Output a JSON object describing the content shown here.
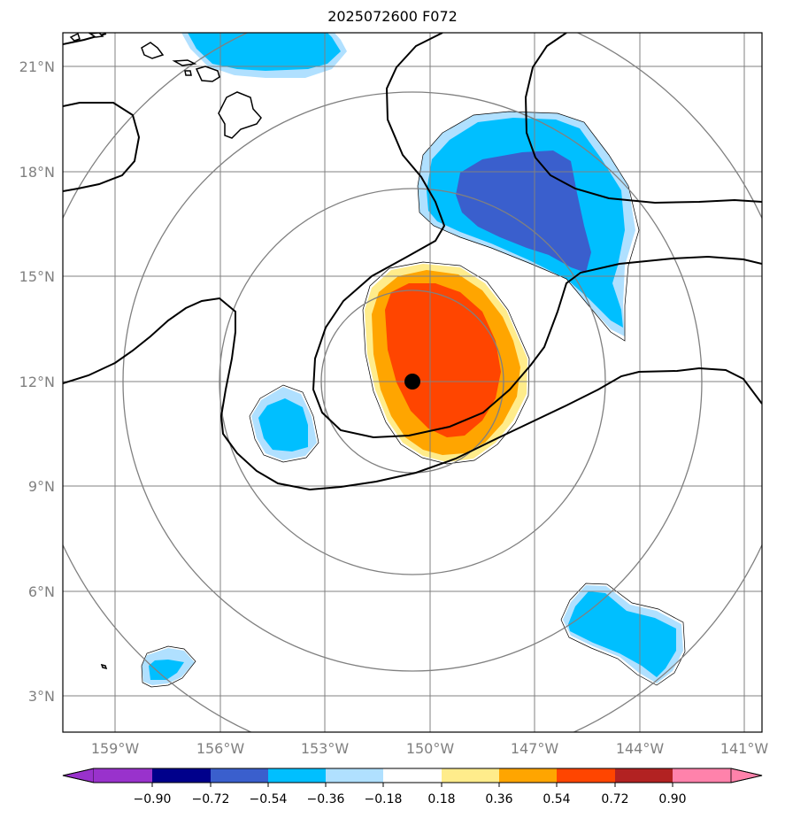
{
  "title": "2025072600 F072",
  "map": {
    "lon_range": [
      -160.0,
      -140.5
    ],
    "lat_range": [
      2.0,
      22.0
    ],
    "lon_ticks": [
      "159°W",
      "156°W",
      "153°W",
      "150°W",
      "147°W",
      "144°W",
      "141°W"
    ],
    "lat_ticks": [
      "21°N",
      "18°N",
      "15°N",
      "12°N",
      "9°N",
      "6°N",
      "3°N"
    ],
    "center_marker": {
      "lon": -150.5,
      "lat": 12.0
    },
    "colors": {
      "grid": "#808080",
      "contour": "#000000"
    }
  },
  "colorbar": {
    "labels": [
      "−0.90",
      "−0.72",
      "−0.54",
      "−0.36",
      "−0.18",
      "0.18",
      "0.36",
      "0.54",
      "0.72",
      "0.90"
    ],
    "colors": [
      "#9932CC",
      "#00008B",
      "#3A5FCD",
      "#00BFFF",
      "#B0E0FF",
      "#FFFFFF",
      "#FFEC8B",
      "#FFA500",
      "#FF4500",
      "#B22222",
      "#FF82AB"
    ]
  }
}
